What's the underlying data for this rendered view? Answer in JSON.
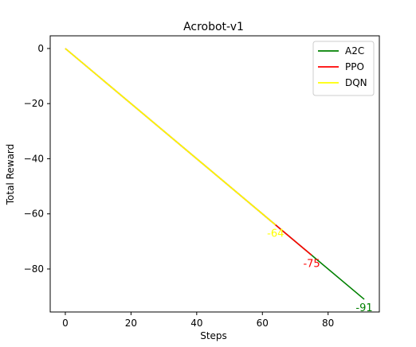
{
  "chart_data": {
    "type": "line",
    "title": "Acrobot-v1",
    "xlabel": "Steps",
    "ylabel": "Total Reward",
    "xlim": [
      -4.6,
      95.6
    ],
    "ylim": [
      -95.6,
      4.6
    ],
    "xticks": [
      0,
      20,
      40,
      60,
      80
    ],
    "yticks": [
      0,
      -20,
      -40,
      -60,
      -80
    ],
    "ytick_labels": [
      "0",
      "−20",
      "−40",
      "−60",
      "−80"
    ],
    "grid": false,
    "legend_position": "top-right",
    "series": [
      {
        "name": "A2C",
        "color": "#008000",
        "x": [
          0,
          91
        ],
        "y": [
          0,
          -91
        ],
        "end_label": "-91"
      },
      {
        "name": "PPO",
        "color": "#ff0000",
        "x": [
          0,
          75
        ],
        "y": [
          0,
          -75
        ],
        "end_label": "-75"
      },
      {
        "name": "DQN",
        "color": "#ffff00",
        "x": [
          0,
          64
        ],
        "y": [
          0,
          -64
        ],
        "end_label": "-64"
      }
    ]
  }
}
